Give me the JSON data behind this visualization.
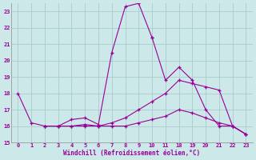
{
  "xlabel": "Windchill (Refroidissement éolien,°C)",
  "bg_color": "#cce8e8",
  "grid_color": "#aacccc",
  "line_color": "#990099",
  "ylim": [
    15,
    23.5
  ],
  "yticks": [
    15,
    16,
    17,
    18,
    19,
    20,
    21,
    22,
    23
  ],
  "n_cols": 18,
  "xtick_positions": [
    0,
    1,
    2,
    3,
    4,
    5,
    6,
    7,
    8,
    9,
    10,
    11,
    12,
    13,
    14,
    15,
    16,
    17
  ],
  "xtick_labels": [
    "0",
    "1",
    "2",
    "3",
    "4",
    "5",
    "6",
    "7",
    "8",
    "9",
    "10",
    "11",
    "18",
    "19",
    "20",
    "21",
    "22",
    "23"
  ],
  "series": [
    {
      "xpos": [
        0,
        1,
        2,
        3,
        4,
        5,
        6,
        7,
        8,
        9,
        10
      ],
      "y": [
        18.0,
        16.2,
        16.0,
        16.0,
        16.4,
        16.5,
        16.1,
        20.5,
        23.3,
        23.5,
        21.4
      ]
    },
    {
      "xpos": [
        10,
        11,
        12,
        13,
        14,
        15,
        16,
        17
      ],
      "y": [
        21.4,
        18.8,
        19.6,
        18.8,
        17.0,
        16.0,
        16.0,
        15.5
      ]
    },
    {
      "xpos": [
        2,
        3,
        4,
        5,
        6,
        7,
        8,
        9,
        10,
        11,
        12,
        13,
        14,
        15,
        16,
        17
      ],
      "y": [
        16.0,
        16.0,
        16.0,
        16.1,
        16.0,
        16.2,
        16.5,
        17.0,
        17.5,
        18.0,
        18.8,
        18.6,
        18.4,
        18.2,
        16.0,
        15.5
      ]
    },
    {
      "xpos": [
        2,
        3,
        4,
        5,
        6,
        7,
        8,
        9,
        10,
        11,
        12,
        13,
        14,
        15,
        16,
        17
      ],
      "y": [
        16.0,
        16.0,
        16.0,
        16.0,
        16.0,
        16.0,
        16.0,
        16.2,
        16.4,
        16.6,
        17.0,
        16.8,
        16.5,
        16.2,
        16.0,
        15.5
      ]
    }
  ]
}
